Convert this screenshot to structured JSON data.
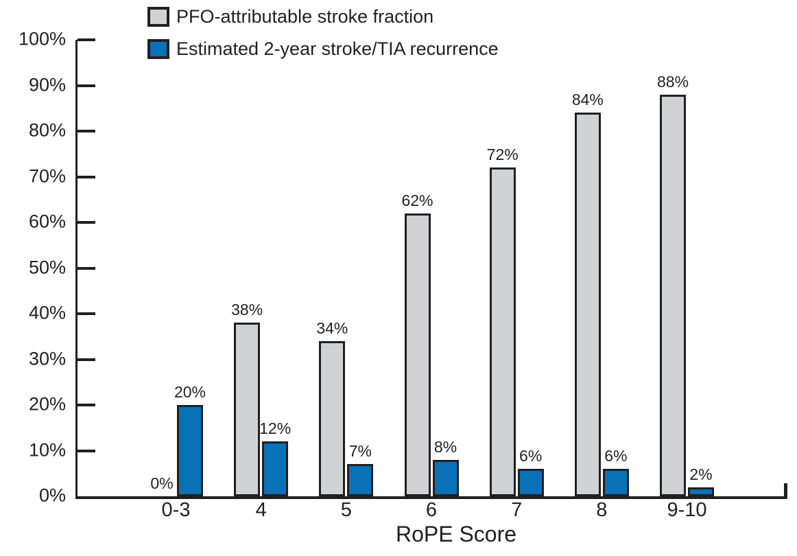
{
  "chart_data": {
    "type": "bar",
    "title": "",
    "xlabel": "RoPE Score",
    "ylabel": "",
    "categories": [
      "0-3",
      "4",
      "5",
      "6",
      "7",
      "8",
      "9-10"
    ],
    "series": [
      {
        "name": "PFO-attributable stroke fraction",
        "color": "#d0d2d3",
        "values": [
          0,
          38,
          34,
          62,
          72,
          84,
          88
        ],
        "data_labels": [
          "0%",
          "38%",
          "34%",
          "62%",
          "72%",
          "84%",
          "88%"
        ]
      },
      {
        "name": "Estimated 2-year stroke/TIA recurrence",
        "color": "#0971b8",
        "values": [
          20,
          12,
          7,
          8,
          6,
          6,
          2
        ],
        "data_labels": [
          "20%",
          "12%",
          "7%",
          "8%",
          "6%",
          "6%",
          "2%"
        ]
      }
    ],
    "ylim": [
      0,
      100
    ],
    "ytick_step": 10,
    "ytick_labels": [
      "0%",
      "10%",
      "20%",
      "30%",
      "40%",
      "50%",
      "60%",
      "70%",
      "80%",
      "90%",
      "100%"
    ],
    "grid": false,
    "legend_position": "top-left",
    "bar_border_color": "#231f20",
    "axis_color": "#231f20",
    "text_color": "#231f20"
  }
}
